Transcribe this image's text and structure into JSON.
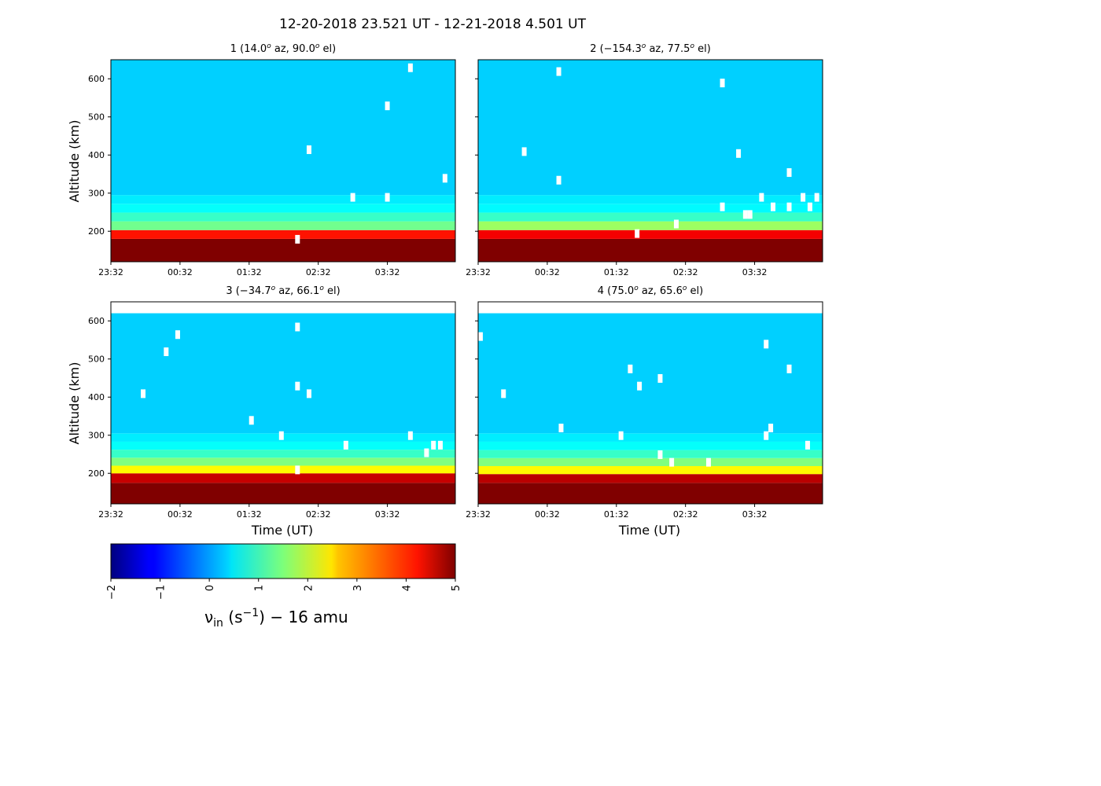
{
  "title": "12-20-2018 23.521 UT - 12-21-2018 4.501 UT",
  "ylabel": "Altitude (km)",
  "xlabel": "Time (UT)",
  "x_ticks": [
    "23:32",
    "00:32",
    "01:32",
    "02:32",
    "03:32"
  ],
  "y_ticks": [
    "200",
    "300",
    "400",
    "500",
    "600"
  ],
  "colormap": {
    "name": "jet",
    "tick_labels": [
      "−2",
      "−1",
      "0",
      "1",
      "2",
      "3",
      "4",
      "5"
    ],
    "label_main": "ν",
    "label_sub": "in",
    "label_units_open": "  (s",
    "label_units_sup": "−1",
    "label_units_close": ")  − 16 amu"
  },
  "chart_data": {
    "type": "heatmap",
    "title": "12-20-2018 23.521 UT - 12-21-2018 4.501 UT",
    "xlabel": "Time (UT)",
    "ylabel": "Altitude (km)",
    "colorbar_range": [
      -2,
      5
    ],
    "panels": [
      {
        "title_pre": "1 (14.0",
        "title_mid1": " az,  90.0",
        "title_post": " el)",
        "title_sup": "o",
        "layers": [
          {
            "alt_bottom": 120,
            "alt_top": 180,
            "value": 5.0
          },
          {
            "alt_bottom": 180,
            "alt_top": 203,
            "value": 4.0
          },
          {
            "alt_bottom": 203,
            "alt_top": 226,
            "value": 1.4
          },
          {
            "alt_bottom": 226,
            "alt_top": 249,
            "value": 1.0
          },
          {
            "alt_bottom": 249,
            "alt_top": 272,
            "value": 0.65
          },
          {
            "alt_bottom": 272,
            "alt_top": 295,
            "value": 0.5
          },
          {
            "alt_bottom": 295,
            "alt_top": 650,
            "value": 0.3
          }
        ],
        "gaps": [
          {
            "time": "02:14",
            "alt": 180
          },
          {
            "time": "02:24",
            "alt": 415
          },
          {
            "time": "03:02",
            "alt": 290
          },
          {
            "time": "03:32",
            "alt": 290
          },
          {
            "time": "03:32",
            "alt": 530
          },
          {
            "time": "03:52",
            "alt": 630
          },
          {
            "time": "04:22",
            "alt": 340
          }
        ]
      },
      {
        "title_pre": "2 (−154.3",
        "title_mid1": " az,  77.5",
        "title_post": " el)",
        "title_sup": "o",
        "layers": [
          {
            "alt_bottom": 120,
            "alt_top": 180,
            "value": 5.0
          },
          {
            "alt_bottom": 180,
            "alt_top": 203,
            "value": 4.2
          },
          {
            "alt_bottom": 203,
            "alt_top": 226,
            "value": 1.7
          },
          {
            "alt_bottom": 226,
            "alt_top": 249,
            "value": 1.0
          },
          {
            "alt_bottom": 249,
            "alt_top": 272,
            "value": 0.6
          },
          {
            "alt_bottom": 272,
            "alt_top": 295,
            "value": 0.5
          },
          {
            "alt_bottom": 295,
            "alt_top": 650,
            "value": 0.3
          }
        ],
        "gaps": [
          {
            "time": "00:12",
            "alt": 410
          },
          {
            "time": "00:42",
            "alt": 335
          },
          {
            "time": "00:42",
            "alt": 620
          },
          {
            "time": "01:50",
            "alt": 195
          },
          {
            "time": "02:24",
            "alt": 220
          },
          {
            "time": "03:04",
            "alt": 265
          },
          {
            "time": "03:04",
            "alt": 590
          },
          {
            "time": "03:18",
            "alt": 405
          },
          {
            "time": "03:24",
            "alt": 245
          },
          {
            "time": "03:28",
            "alt": 245
          },
          {
            "time": "03:38",
            "alt": 290
          },
          {
            "time": "03:48",
            "alt": 265
          },
          {
            "time": "04:02",
            "alt": 265
          },
          {
            "time": "04:02",
            "alt": 355
          },
          {
            "time": "04:14",
            "alt": 290
          },
          {
            "time": "04:20",
            "alt": 265
          },
          {
            "time": "04:26",
            "alt": 290
          }
        ]
      },
      {
        "title_pre": "3 (−34.7",
        "title_mid1": " az,  66.1",
        "title_post": " el)",
        "title_sup": "o",
        "layers": [
          {
            "alt_bottom": 120,
            "alt_top": 175,
            "value": 5.0
          },
          {
            "alt_bottom": 175,
            "alt_top": 200,
            "value": 4.5
          },
          {
            "alt_bottom": 200,
            "alt_top": 220,
            "value": 2.4
          },
          {
            "alt_bottom": 220,
            "alt_top": 241,
            "value": 1.5
          },
          {
            "alt_bottom": 241,
            "alt_top": 262,
            "value": 1.0
          },
          {
            "alt_bottom": 262,
            "alt_top": 283,
            "value": 0.65
          },
          {
            "alt_bottom": 283,
            "alt_top": 305,
            "value": 0.5
          },
          {
            "alt_bottom": 305,
            "alt_top": 620,
            "value": 0.3
          }
        ],
        "gaps": [
          {
            "time": "00:00",
            "alt": 410
          },
          {
            "time": "00:20",
            "alt": 520
          },
          {
            "time": "00:30",
            "alt": 565
          },
          {
            "time": "01:34",
            "alt": 340
          },
          {
            "time": "02:00",
            "alt": 300
          },
          {
            "time": "02:14",
            "alt": 210
          },
          {
            "time": "02:14",
            "alt": 430
          },
          {
            "time": "02:14",
            "alt": 585
          },
          {
            "time": "02:24",
            "alt": 410
          },
          {
            "time": "02:56",
            "alt": 275
          },
          {
            "time": "03:52",
            "alt": 300
          },
          {
            "time": "04:06",
            "alt": 255
          },
          {
            "time": "04:12",
            "alt": 275
          },
          {
            "time": "04:18",
            "alt": 275
          }
        ]
      },
      {
        "title_pre": "4 (75.0",
        "title_mid1": " az,  65.6",
        "title_post": " el)",
        "title_sup": "o",
        "layers": [
          {
            "alt_bottom": 120,
            "alt_top": 175,
            "value": 5.0
          },
          {
            "alt_bottom": 175,
            "alt_top": 198,
            "value": 4.6
          },
          {
            "alt_bottom": 198,
            "alt_top": 219,
            "value": 2.4
          },
          {
            "alt_bottom": 219,
            "alt_top": 240,
            "value": 1.5
          },
          {
            "alt_bottom": 240,
            "alt_top": 261,
            "value": 1.0
          },
          {
            "alt_bottom": 261,
            "alt_top": 283,
            "value": 0.65
          },
          {
            "alt_bottom": 283,
            "alt_top": 305,
            "value": 0.5
          },
          {
            "alt_bottom": 305,
            "alt_top": 620,
            "value": 0.3
          }
        ],
        "gaps": [
          {
            "time": "23:34",
            "alt": 560
          },
          {
            "time": "23:54",
            "alt": 410
          },
          {
            "time": "00:44",
            "alt": 320
          },
          {
            "time": "01:36",
            "alt": 300
          },
          {
            "time": "01:44",
            "alt": 475
          },
          {
            "time": "01:52",
            "alt": 430
          },
          {
            "time": "02:10",
            "alt": 250
          },
          {
            "time": "02:10",
            "alt": 450
          },
          {
            "time": "02:20",
            "alt": 230
          },
          {
            "time": "02:52",
            "alt": 230
          },
          {
            "time": "03:42",
            "alt": 300
          },
          {
            "time": "03:42",
            "alt": 540
          },
          {
            "time": "03:46",
            "alt": 320
          },
          {
            "time": "04:02",
            "alt": 475
          },
          {
            "time": "04:18",
            "alt": 275
          }
        ]
      }
    ]
  }
}
